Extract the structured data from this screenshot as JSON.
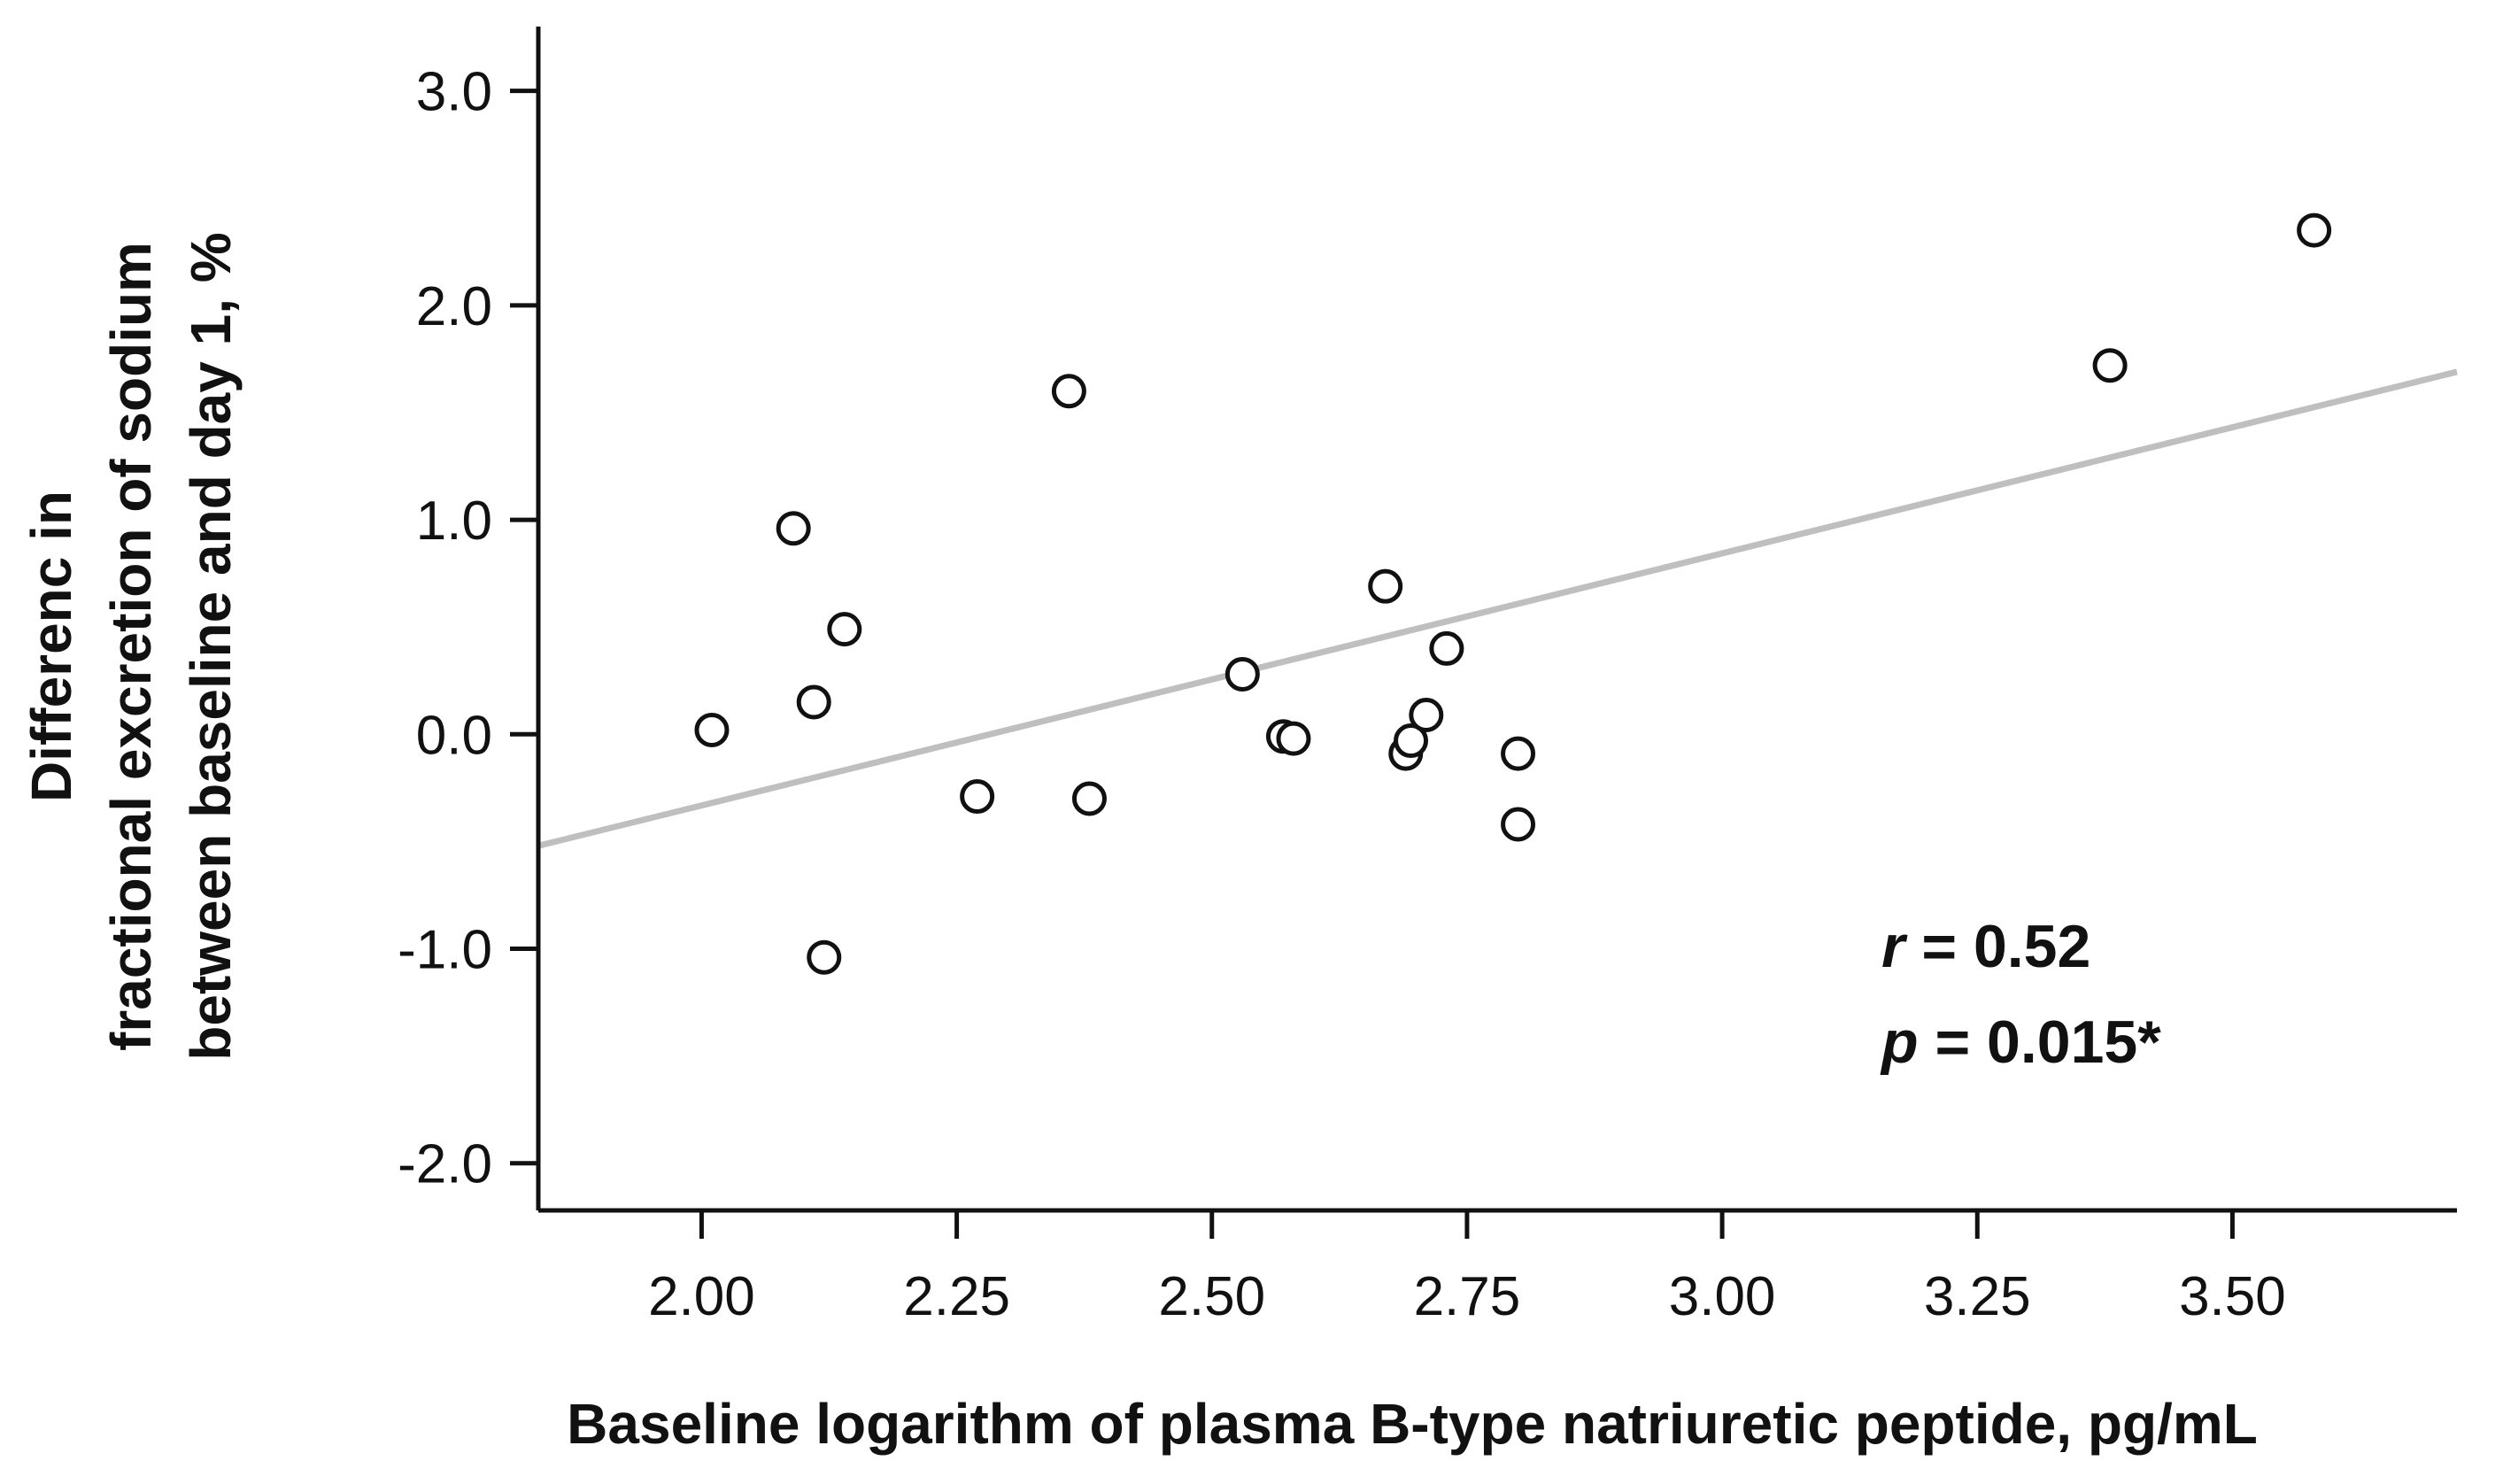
{
  "chart_data": {
    "type": "scatter",
    "title": "",
    "xlabel": "Baseline logarithm of plasma B-type natriuretic peptide, pg/mL",
    "ylabel_lines": [
      "Differenc in",
      "fractional excretion of sodium",
      "between baseline and day 1, %"
    ],
    "xlim": [
      1.84,
      3.72
    ],
    "ylim": [
      -2.22,
      3.3
    ],
    "x_ticks": [
      2.0,
      2.25,
      2.5,
      2.75,
      3.0,
      3.25,
      3.5
    ],
    "x_tick_labels": [
      "2.00",
      "2.25",
      "2.50",
      "2.75",
      "3.00",
      "3.25",
      "3.50"
    ],
    "y_ticks": [
      3.0,
      2.0,
      1.0,
      0.0,
      -1.0,
      -2.0
    ],
    "y_tick_labels": [
      "3.0",
      "2.0",
      "1.0",
      "0.0",
      "-1.0",
      "-2.0"
    ],
    "grid": false,
    "points": [
      {
        "x": 2.01,
        "y": 0.02
      },
      {
        "x": 2.09,
        "y": 0.96
      },
      {
        "x": 2.11,
        "y": 0.15
      },
      {
        "x": 2.12,
        "y": -1.04
      },
      {
        "x": 2.14,
        "y": 0.49
      },
      {
        "x": 2.27,
        "y": -0.29
      },
      {
        "x": 2.36,
        "y": 1.6
      },
      {
        "x": 2.38,
        "y": -0.3
      },
      {
        "x": 2.53,
        "y": 0.28
      },
      {
        "x": 2.57,
        "y": -0.01
      },
      {
        "x": 2.58,
        "y": -0.02
      },
      {
        "x": 2.67,
        "y": 0.69
      },
      {
        "x": 2.69,
        "y": -0.09
      },
      {
        "x": 2.695,
        "y": -0.03
      },
      {
        "x": 2.71,
        "y": 0.09
      },
      {
        "x": 2.73,
        "y": 0.4
      },
      {
        "x": 2.8,
        "y": -0.09
      },
      {
        "x": 2.8,
        "y": -0.42
      },
      {
        "x": 3.38,
        "y": 1.72
      },
      {
        "x": 3.58,
        "y": 2.35
      }
    ],
    "regression_line": {
      "x": [
        1.84,
        3.72
      ],
      "y": [
        -0.52,
        1.69
      ]
    },
    "colors": {
      "points": "#111111",
      "regression": "#bfbfbf",
      "axes": "#111111"
    },
    "annotations": {
      "r_symbol": "r",
      "r_value": " = 0.52",
      "p_symbol": "p",
      "p_value": " = 0.015*"
    }
  }
}
